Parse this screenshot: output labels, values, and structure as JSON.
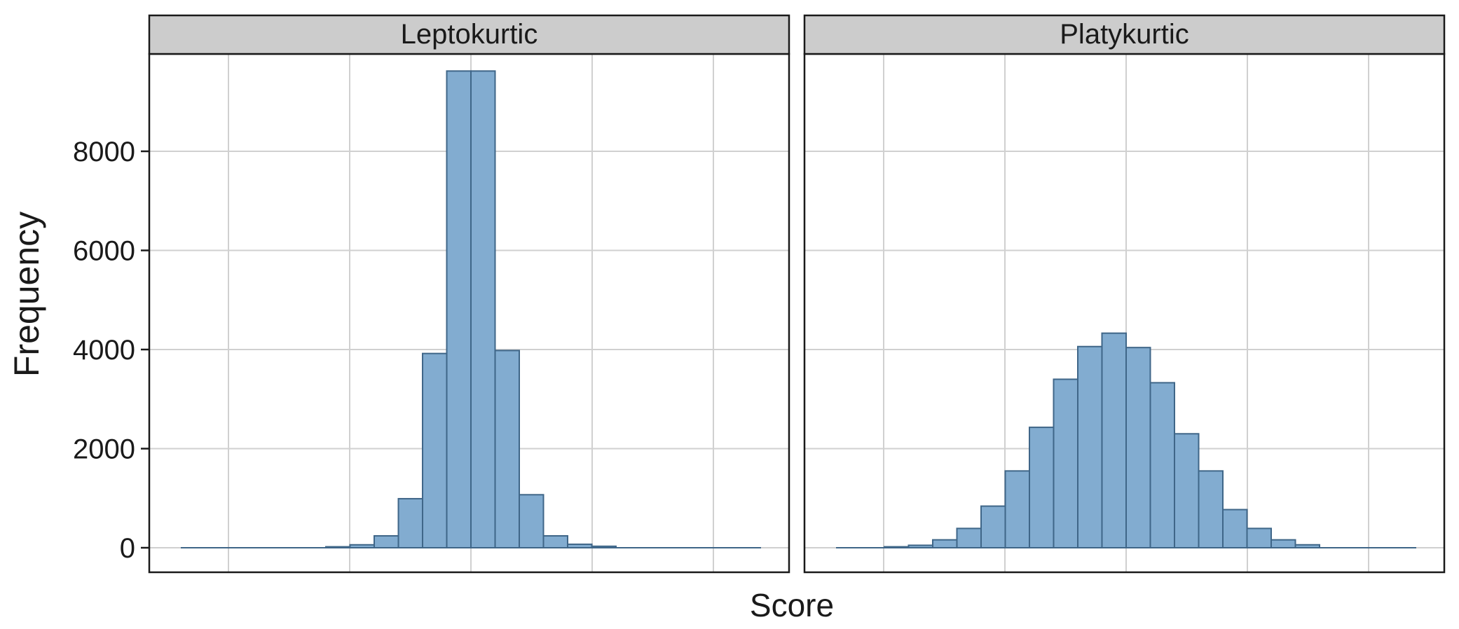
{
  "chart_data": {
    "type": "bar",
    "ylabel": "Frequency",
    "xlabel": "Score",
    "ylim": [
      -500,
      10000
    ],
    "y_ticks": [
      0,
      2000,
      4000,
      6000,
      8000
    ],
    "grid": true,
    "colors": {
      "bar_fill": "#82acd0",
      "bar_stroke": "#3f6688",
      "strip_fill": "#cccccc",
      "grid": "#d0d0d0"
    },
    "panels": [
      {
        "title": "Leptokurtic",
        "values": [
          0,
          0,
          0,
          0,
          0,
          0,
          20,
          60,
          240,
          990,
          3920,
          9620,
          9620,
          3980,
          1070,
          240,
          70,
          30,
          0,
          0,
          0,
          0,
          0,
          0
        ]
      },
      {
        "title": "Platykurtic",
        "values": [
          0,
          0,
          20,
          50,
          160,
          390,
          840,
          1550,
          2430,
          3400,
          4060,
          4330,
          4040,
          3330,
          2300,
          1550,
          770,
          390,
          160,
          60,
          0,
          0,
          0,
          0
        ]
      }
    ]
  }
}
